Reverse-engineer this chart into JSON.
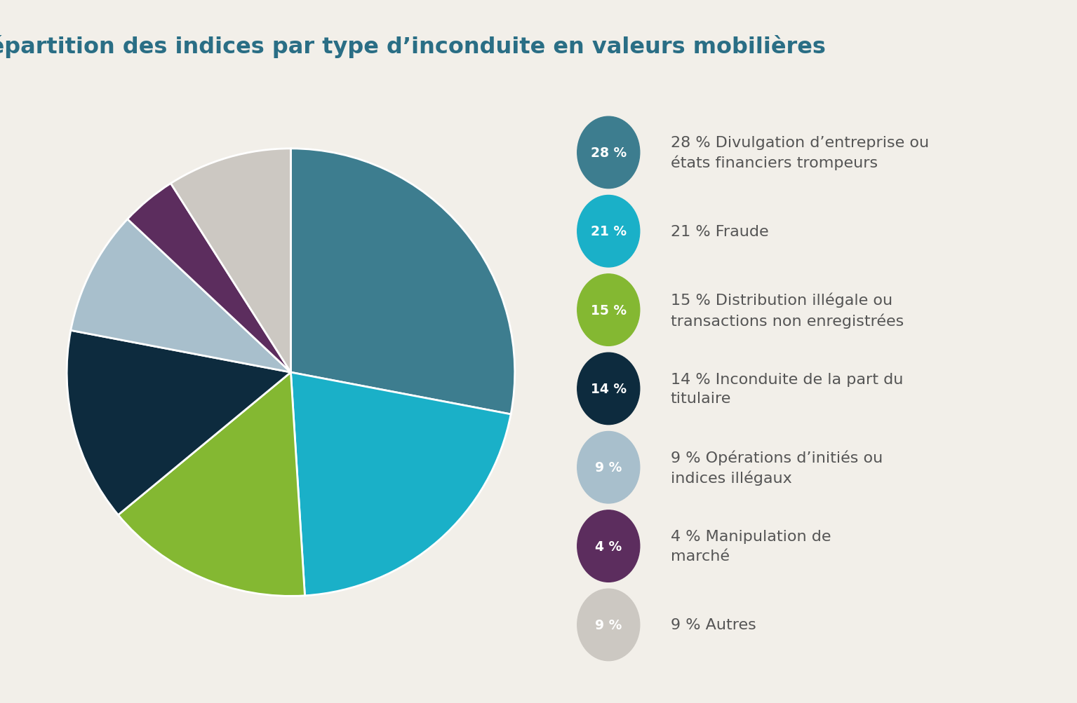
{
  "title": "Répartition des indices par type d’inconduite en valeurs mobilières",
  "title_color": "#2a6e85",
  "background_color": "#f2efe9",
  "slices": [
    {
      "label": "28 % Divulgation d’entreprise ou\nétats financiers trompeurs",
      "pct": 28,
      "badge_color": "#3d7d8f"
    },
    {
      "label": "21 % Fraude",
      "pct": 21,
      "badge_color": "#1ab0c8"
    },
    {
      "label": "15 % Distribution illégale ou\ntransactions non enregistrées",
      "pct": 15,
      "badge_color": "#84b832"
    },
    {
      "label": "14 % Inconduite de la part du\ntitulaire",
      "pct": 14,
      "badge_color": "#0d2b3e"
    },
    {
      "label": "9 % Opérations d’initiés ou\nindices illégaux",
      "pct": 9,
      "badge_color": "#a8bfcc"
    },
    {
      "label": "4 % Manipulation de\nmarché",
      "pct": 4,
      "badge_color": "#5c2d5e"
    },
    {
      "label": "9 % Autres",
      "pct": 9,
      "badge_color": "#ccc8c2"
    }
  ],
  "pie_colors": [
    "#3d7d8f",
    "#1ab0c8",
    "#84b832",
    "#0d2b3e",
    "#a8bfcc",
    "#5c2d5e",
    "#ccc8c2"
  ],
  "badge_text_color": "#ffffff",
  "legend_text_color": "#555555",
  "start_angle": 90
}
